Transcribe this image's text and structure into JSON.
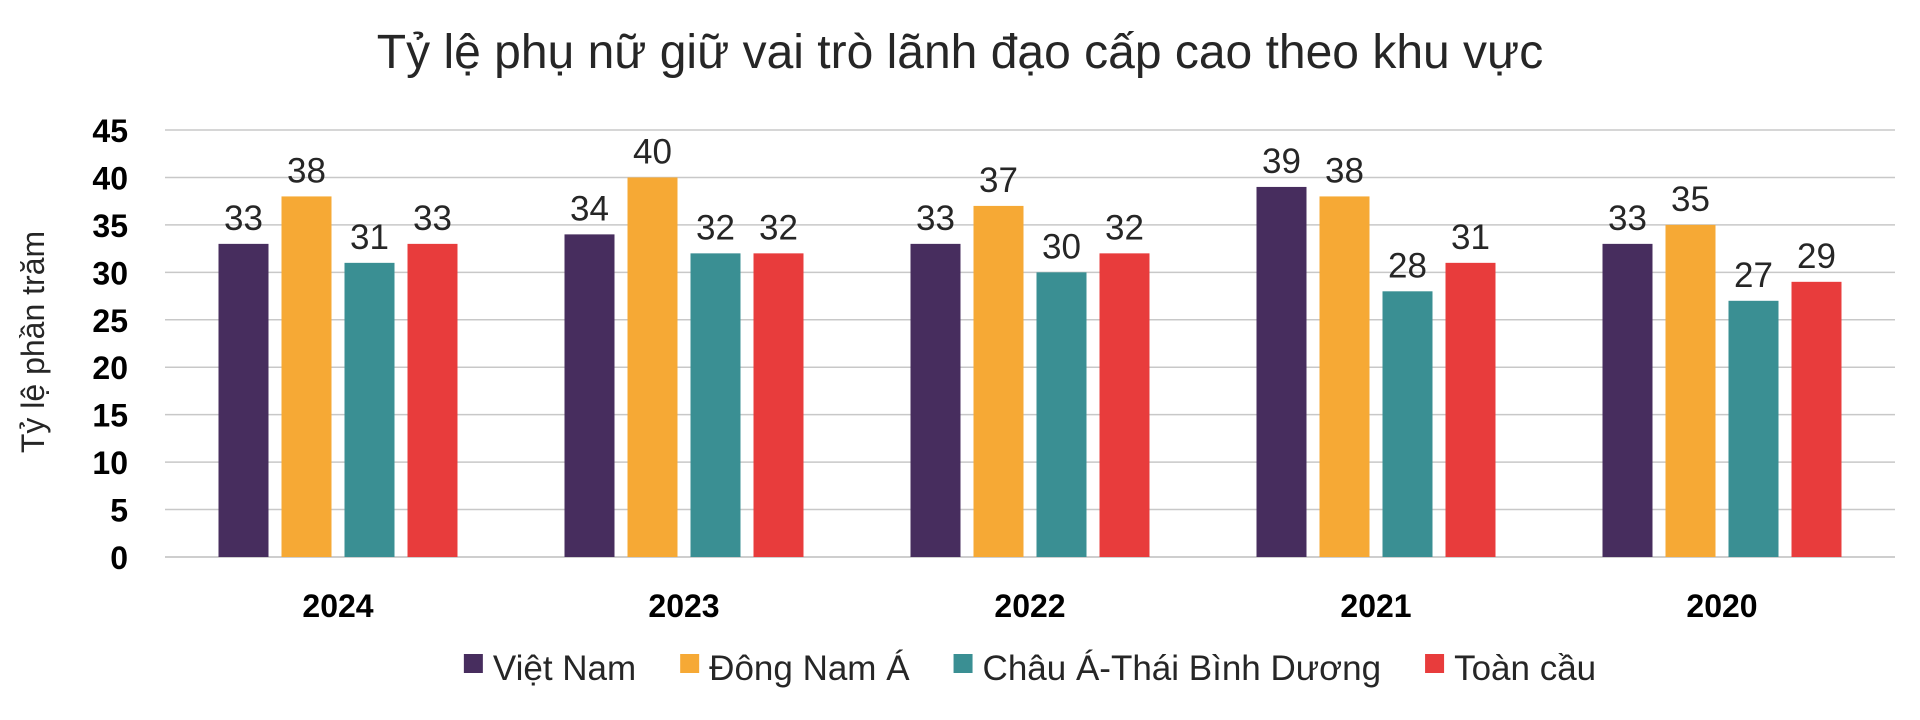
{
  "chart_data": {
    "type": "bar",
    "title": "Tỷ lệ phụ nữ giữ vai trò lãnh đạo cấp cao theo khu vực",
    "xlabel": "",
    "ylabel": "Tỷ lệ phần trăm",
    "ylim": [
      0,
      45
    ],
    "yticks": [
      "0",
      "5",
      "10",
      "15",
      "20",
      "25",
      "30",
      "35",
      "40",
      "45"
    ],
    "grid": true,
    "legend_position": "bottom",
    "categories": [
      "2024",
      "2023",
      "2022",
      "2021",
      "2020"
    ],
    "series": [
      {
        "name": "Việt Nam",
        "color": "#472d5e",
        "values": [
          33,
          34,
          33,
          39,
          33
        ]
      },
      {
        "name": "Đông Nam Á",
        "color": "#f6a935",
        "values": [
          38,
          40,
          37,
          38,
          35
        ]
      },
      {
        "name": "Châu Á-Thái Bình Dương",
        "color": "#3a8f93",
        "values": [
          31,
          32,
          30,
          28,
          27
        ]
      },
      {
        "name": "Toàn cầu",
        "color": "#e83c3c",
        "values": [
          33,
          32,
          32,
          31,
          29
        ]
      }
    ]
  }
}
